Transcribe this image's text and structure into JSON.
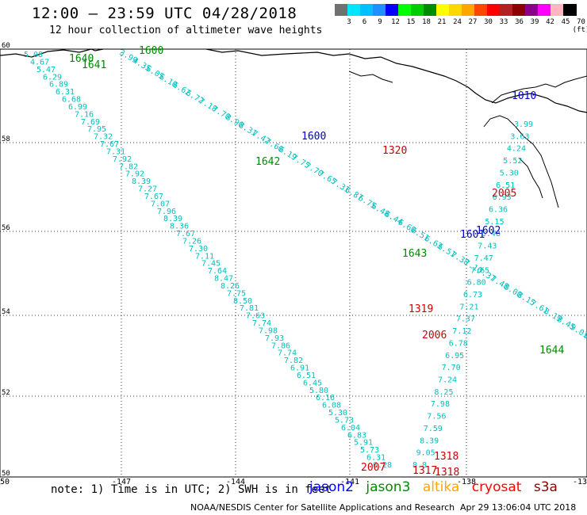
{
  "header": {
    "title": "12:00 – 23:59 UTC 04/28/2018",
    "subtitle": "12 hour collection of altimeter wave heights"
  },
  "scale": {
    "colors": [
      "#707070",
      "#00e5ff",
      "#00bfff",
      "#1e90ff",
      "#0000ff",
      "#00ff00",
      "#00cd00",
      "#008b00",
      "#ffff00",
      "#ffd700",
      "#ffa500",
      "#ff4500",
      "#ff0000",
      "#b22222",
      "#8b0000",
      "#8b008b",
      "#ff00ff",
      "#ffb6c1",
      "#000000"
    ],
    "ticks": [
      "3",
      "6",
      "9",
      "12",
      "15",
      "18",
      "21",
      "24",
      "27",
      "30",
      "33",
      "36",
      "39",
      "42",
      "45",
      "70 (ft)"
    ]
  },
  "axes": {
    "lon": [
      "-150",
      "-147",
      "-144",
      "-141",
      "-138",
      "-13"
    ],
    "lat": [
      "60",
      "58",
      "56",
      "54",
      "52",
      "50"
    ]
  },
  "tracks": [
    {
      "color": "#00bfbf",
      "labels": [
        "5.08",
        "4.67",
        "5.47",
        "6.29",
        "6.89",
        "6.31",
        "6.68",
        "6.99",
        "7.16",
        "7.69",
        "7.95",
        "7.32",
        "7.67",
        "7.31",
        "7.92",
        "7.82",
        "7.92",
        "8.39",
        "7.27",
        "7.67",
        "7.07",
        "7.96",
        "8.39",
        "8.36",
        "7.67",
        "7.26",
        "7.30",
        "7.11",
        "7.45",
        "7.64",
        "8.47",
        "8.26",
        "7.75",
        "8.50",
        "7.81",
        "7.63",
        "7.74",
        "7.98",
        "7.93",
        "7.86",
        "7.74",
        "7.82",
        "6.91",
        "6.51",
        "6.45",
        "5.80",
        "6.16",
        "6.08",
        "5.30",
        "5.73",
        "6.04",
        "6.83",
        "5.91",
        "5.73",
        "6.31",
        "6.28"
      ]
    },
    {
      "color": "#00bfbf",
      "labels": [
        "3.99",
        "4.35",
        "6.05",
        "6.10",
        "6.62",
        "6.72",
        "7.18",
        "7.70",
        "8.90",
        "8.31",
        "7.42",
        "7.60",
        "6.19",
        "7.75",
        "7.70",
        "7.65",
        "7.31",
        "6.87",
        "6.75",
        "6.48",
        "6.44",
        "6.60",
        "6.51",
        "6.63",
        "6.51",
        "7.38",
        "7.16",
        "7.37",
        "7.48",
        "8.00",
        "8.15",
        "7.61",
        "8.19",
        "8.45",
        "9.01",
        "9.11"
      ]
    },
    {
      "color": "#00bfbf",
      "labels": [
        "3.99",
        "3.63",
        "4.24",
        "5.52",
        "5.30",
        "6.51",
        "6.93",
        "6.36",
        "5.15",
        "6.48",
        "7.43",
        "7.47",
        "7.65",
        "6.80",
        "6.73",
        "7.21",
        "7.37",
        "7.12",
        "6.78",
        "6.95",
        "7.70",
        "7.24",
        "8.25",
        "7.98",
        "7.56",
        "7.59",
        "8.39",
        "9.05",
        "8.8"
      ]
    }
  ],
  "markers": {
    "jason2": [
      "1600",
      "1601",
      "1602",
      "1010"
    ],
    "jason3": [
      "1640",
      "1641",
      "1600",
      "1642",
      "1643",
      "1644"
    ],
    "cryosat": [
      "1320",
      "2005",
      "1319",
      "1318",
      "2006",
      "1318",
      "1317",
      "2007"
    ]
  },
  "footer": {
    "note": "note: 1) Time is in UTC; 2) SWH is in feet",
    "legend": {
      "jason2": "jason2",
      "jason3": "jason3",
      "altika": "altika",
      "cryosat": "cryosat",
      "s3a": "s3a"
    },
    "credit": "NOAA/NESDIS Center for Satellite Applications and Research",
    "generated": "Apr 29 13:06:04 UTC 2018"
  }
}
